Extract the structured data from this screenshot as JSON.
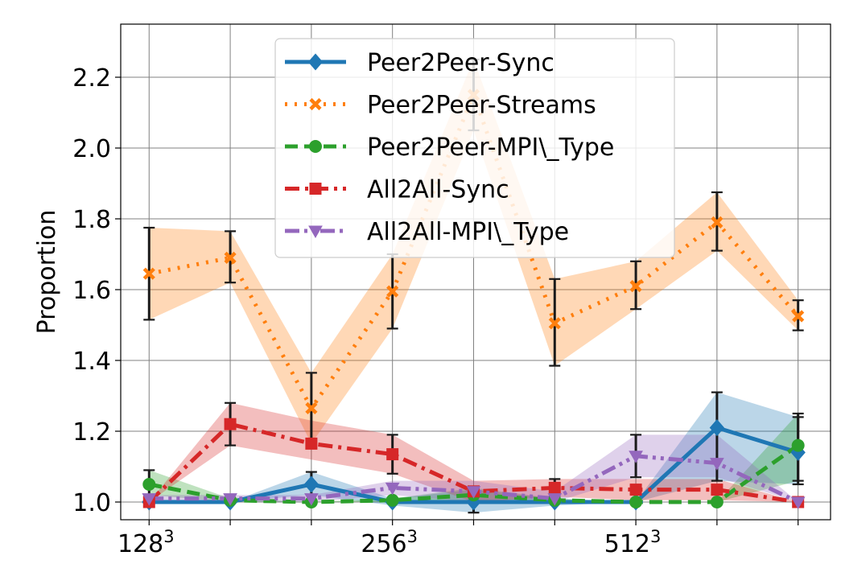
{
  "chart_data": {
    "type": "line",
    "ylabel": "Proportion",
    "xlabel": "",
    "ylim": [
      0.95,
      2.35
    ],
    "xlim": [
      -0.35,
      8.4
    ],
    "yticks": [
      1.0,
      1.2,
      1.4,
      1.6,
      1.8,
      2.0,
      2.2
    ],
    "ytick_labels": [
      "1.0",
      "1.2",
      "1.4",
      "1.6",
      "1.8",
      "2.0",
      "2.2"
    ],
    "xticks": [
      0,
      1,
      2,
      3,
      4,
      5,
      6,
      7,
      8
    ],
    "xtick_labels": [
      {
        "base": "128",
        "sup": "3"
      },
      {
        "base": "",
        "sup": ""
      },
      {
        "base": "",
        "sup": ""
      },
      {
        "base": "256",
        "sup": "3"
      },
      {
        "base": "",
        "sup": ""
      },
      {
        "base": "",
        "sup": ""
      },
      {
        "base": "512",
        "sup": "3"
      },
      {
        "base": "",
        "sup": ""
      },
      {
        "base": "",
        "sup": ""
      }
    ],
    "grid": true,
    "legend_position": "upper-center",
    "x": [
      0,
      1,
      2,
      3,
      4,
      5,
      6,
      7,
      8
    ],
    "series": [
      {
        "name": "Peer2Peer-Sync",
        "color": "#1f77b4",
        "linestyle": "solid",
        "marker": "diamond",
        "values": [
          1.0,
          1.0,
          1.05,
          1.0,
          1.0,
          1.0,
          1.0,
          1.21,
          1.14
        ],
        "lower": [
          1.0,
          1.0,
          1.02,
          0.99,
          0.97,
          0.99,
          1.0,
          1.06,
          1.05
        ],
        "upper": [
          1.0,
          1.0,
          1.085,
          1.01,
          1.035,
          1.01,
          1.0,
          1.31,
          1.24
        ],
        "errorbars": [
          false,
          false,
          true,
          false,
          true,
          false,
          false,
          true,
          true
        ]
      },
      {
        "name": "Peer2Peer-Streams",
        "color": "#ff7f0e",
        "linestyle": "dotted",
        "marker": "x",
        "values": [
          1.645,
          1.69,
          1.265,
          1.595,
          2.15,
          1.505,
          1.61,
          1.79,
          1.525
        ],
        "lower": [
          1.515,
          1.62,
          1.165,
          1.49,
          2.05,
          1.385,
          1.545,
          1.71,
          1.485
        ],
        "upper": [
          1.775,
          1.765,
          1.365,
          1.7,
          2.25,
          1.63,
          1.68,
          1.875,
          1.57
        ],
        "errorbars": [
          true,
          true,
          true,
          true,
          true,
          true,
          true,
          true,
          true
        ]
      },
      {
        "name": "Peer2Peer-MPI\\_Type",
        "color": "#2ca02c",
        "linestyle": "dashed",
        "marker": "circle",
        "values": [
          1.05,
          1.005,
          1.0,
          1.005,
          1.02,
          1.005,
          1.0,
          1.0,
          1.16
        ],
        "lower": [
          1.02,
          1.0,
          1.0,
          1.0,
          1.0,
          1.0,
          1.0,
          1.0,
          1.06
        ],
        "upper": [
          1.09,
          1.01,
          1.0,
          1.01,
          1.04,
          1.01,
          1.0,
          1.0,
          1.25
        ],
        "errorbars": [
          true,
          false,
          false,
          false,
          false,
          false,
          false,
          false,
          true
        ]
      },
      {
        "name": "All2All-Sync",
        "color": "#d62728",
        "linestyle": "dashdot",
        "marker": "square",
        "values": [
          1.0,
          1.22,
          1.165,
          1.135,
          1.03,
          1.04,
          1.035,
          1.035,
          1.0
        ],
        "lower": [
          1.0,
          1.16,
          1.12,
          1.08,
          1.0,
          1.015,
          1.005,
          1.005,
          1.0
        ],
        "upper": [
          1.0,
          1.28,
          1.23,
          1.19,
          1.06,
          1.065,
          1.065,
          1.065,
          1.0
        ],
        "errorbars": [
          false,
          true,
          false,
          true,
          false,
          true,
          false,
          false,
          false
        ]
      },
      {
        "name": "All2All-MPI\\_Type",
        "color": "#9467bd",
        "linestyle": "dashdotdot",
        "marker": "triangle-down",
        "values": [
          1.01,
          1.01,
          1.01,
          1.04,
          1.03,
          1.01,
          1.13,
          1.11,
          1.0
        ],
        "lower": [
          1.0,
          1.0,
          1.0,
          1.02,
          1.0,
          1.0,
          1.07,
          1.07,
          1.0
        ],
        "upper": [
          1.02,
          1.02,
          1.02,
          1.06,
          1.06,
          1.03,
          1.19,
          1.19,
          1.0
        ],
        "errorbars": [
          false,
          false,
          false,
          false,
          false,
          false,
          true,
          false,
          false
        ]
      }
    ]
  }
}
